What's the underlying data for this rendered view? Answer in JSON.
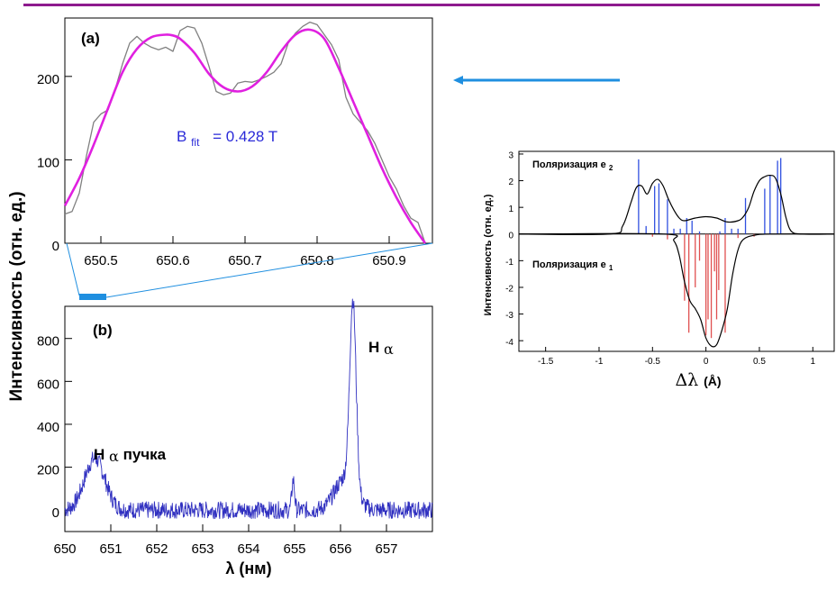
{
  "colors": {
    "top_rule": "#8e1a8e",
    "fit_curve": "#e020e0",
    "data_gray": "#808080",
    "spectrum_blue": "#3030c0",
    "annotation_blue": "#2a2ad8",
    "arrow_blue": "#1f8fe0",
    "sigma_red": "#e05050",
    "pi_blue": "#3050e0"
  },
  "figure": {
    "ylabel_left": "Интенсивность (отн. ед.)",
    "arrow_icon": "left-arrow"
  },
  "chart_data": [
    {
      "type": "line",
      "panel_label": "(a)",
      "annotation": {
        "text_main": "B",
        "text_sub": "fit",
        "text_value": "= 0.428 T"
      },
      "xlim": [
        650.45,
        650.96
      ],
      "ylim": [
        0,
        270
      ],
      "xticks": [
        650.5,
        650.6,
        650.7,
        650.8,
        650.9
      ],
      "xticklabels": [
        "650.5",
        "650.6",
        "650.7",
        "650.8",
        "650.9"
      ],
      "yticks": [
        0,
        100,
        200
      ],
      "yticklabels": [
        "0",
        "100",
        "200"
      ],
      "series": [
        {
          "role": "data",
          "x": [
            650.45,
            650.46,
            650.47,
            650.48,
            650.49,
            650.5,
            650.51,
            650.52,
            650.53,
            650.54,
            650.55,
            650.56,
            650.57,
            650.58,
            650.59,
            650.6,
            650.61,
            650.62,
            650.63,
            650.64,
            650.65,
            650.66,
            650.67,
            650.68,
            650.69,
            650.7,
            650.71,
            650.72,
            650.73,
            650.74,
            650.75,
            650.76,
            650.77,
            650.78,
            650.79,
            650.8,
            650.81,
            650.82,
            650.83,
            650.84,
            650.85,
            650.86,
            650.87,
            650.88,
            650.89,
            650.9,
            650.91,
            650.92,
            650.93,
            650.94,
            650.95
          ],
          "y": [
            35,
            38,
            60,
            105,
            145,
            155,
            160,
            185,
            215,
            240,
            248,
            240,
            235,
            232,
            235,
            230,
            255,
            260,
            258,
            240,
            212,
            182,
            178,
            180,
            192,
            194,
            193,
            196,
            200,
            205,
            215,
            240,
            252,
            260,
            265,
            262,
            250,
            238,
            220,
            175,
            155,
            145,
            135,
            120,
            100,
            80,
            65,
            45,
            30,
            25,
            0
          ]
        },
        {
          "role": "fit",
          "x": [
            650.45,
            650.47,
            650.49,
            650.51,
            650.53,
            650.55,
            650.57,
            650.59,
            650.6,
            650.61,
            650.63,
            650.65,
            650.67,
            650.69,
            650.71,
            650.73,
            650.75,
            650.77,
            650.79,
            650.81,
            650.83,
            650.85,
            650.87,
            650.89,
            650.91,
            650.93,
            650.95
          ],
          "y": [
            45,
            78,
            118,
            162,
            205,
            233,
            247,
            250,
            249,
            245,
            228,
            203,
            187,
            182,
            188,
            205,
            230,
            250,
            256,
            245,
            210,
            170,
            130,
            90,
            55,
            25,
            0
          ]
        }
      ]
    },
    {
      "type": "line",
      "panel_label": "(b)",
      "xlabel": "λ (нм)",
      "xlim": [
        650,
        658
      ],
      "ylim": [
        -100,
        950
      ],
      "xticks": [
        650,
        651,
        652,
        653,
        654,
        655,
        656,
        657
      ],
      "xticklabels": [
        "650",
        "651",
        "652",
        "653",
        "654",
        "655",
        "656",
        "657"
      ],
      "yticks": [
        0,
        200,
        400,
        600,
        800
      ],
      "yticklabels": [
        "0",
        "200",
        "400",
        "600",
        "800"
      ],
      "annotations": [
        {
          "text_main": "H",
          "text_sub": "α",
          "text_tail": " пучка"
        },
        {
          "text_main": "H",
          "text_sub": "α",
          "text_tail": ""
        }
      ],
      "series": [
        {
          "role": "spectrum",
          "baseline": 0,
          "noise": 40,
          "peaks": [
            {
              "center": 650.65,
              "amp": 240,
              "width": 0.22
            },
            {
              "center": 654.97,
              "amp": 140,
              "width": 0.03
            },
            {
              "center": 656.27,
              "amp": 870,
              "width": 0.07
            },
            {
              "center": 656.1,
              "amp": 150,
              "width": 0.22
            }
          ]
        }
      ]
    },
    {
      "type": "line",
      "xlabel_main": "Δλ",
      "xlabel_unit": "(Å)",
      "ylabel": "Интенсивность (отн. ед.)",
      "legend_top": {
        "text_main": "Поляризация e",
        "text_sub": "2"
      },
      "legend_bottom": {
        "text_main": "Поляризация e",
        "text_sub": "1"
      },
      "xlim": [
        -1.75,
        1.2
      ],
      "ylim": [
        -4.4,
        3.1
      ],
      "xticks": [
        -1.5,
        -1,
        -0.5,
        0,
        0.5,
        1
      ],
      "xticklabels": [
        "-1.5",
        "-1",
        "-0.5",
        "0",
        "0.5",
        "1"
      ],
      "yticks": [
        -4,
        -3,
        -2,
        -1,
        0,
        1,
        2,
        3
      ],
      "yticklabels": [
        "-4",
        "-3",
        "-2",
        "-1",
        "0",
        "1",
        "2",
        "3"
      ],
      "series": [
        {
          "role": "envelope-e2",
          "x": [
            -1.75,
            -0.9,
            -0.78,
            -0.7,
            -0.65,
            -0.6,
            -0.55,
            -0.5,
            -0.45,
            -0.4,
            -0.35,
            -0.3,
            -0.25,
            -0.2,
            -0.1,
            0,
            0.1,
            0.2,
            0.3,
            0.35,
            0.4,
            0.45,
            0.5,
            0.55,
            0.6,
            0.65,
            0.7,
            0.75,
            0.8,
            0.9,
            1.2
          ],
          "y": [
            0,
            0,
            0.3,
            1.2,
            1.75,
            1.8,
            1.5,
            1.9,
            2.05,
            1.8,
            1.3,
            0.9,
            0.6,
            0.5,
            0.6,
            0.65,
            0.6,
            0.45,
            0.5,
            0.65,
            1.0,
            1.6,
            2.0,
            2.15,
            2.2,
            2.1,
            1.5,
            0.6,
            0.1,
            0,
            0
          ]
        },
        {
          "role": "envelope-e1",
          "x": [
            -1.75,
            -0.4,
            -0.3,
            -0.25,
            -0.2,
            -0.15,
            -0.1,
            -0.05,
            0,
            0.05,
            0.1,
            0.15,
            0.2,
            0.25,
            0.3,
            0.35,
            0.45,
            0.6,
            1.2
          ],
          "y": [
            0,
            0,
            -0.25,
            -0.8,
            -1.8,
            -2.5,
            -2.8,
            -3.2,
            -3.9,
            -4.2,
            -4.15,
            -3.6,
            -2.8,
            -1.5,
            -0.6,
            -0.2,
            -0.05,
            0,
            0
          ]
        },
        {
          "role": "components-e2",
          "x": [
            -0.63,
            -0.56,
            -0.48,
            -0.44,
            -0.36,
            -0.3,
            -0.24,
            -0.18,
            -0.13,
            -0.06,
            0.13,
            0.18,
            0.24,
            0.3,
            0.37,
            0.55,
            0.6,
            0.67,
            0.7
          ],
          "y": [
            2.8,
            0.3,
            1.8,
            1.9,
            1.3,
            0.2,
            0.2,
            0.6,
            0.5,
            0.1,
            0.1,
            0.6,
            0.2,
            0.2,
            1.35,
            1.7,
            2.2,
            2.75,
            2.85
          ]
        },
        {
          "role": "components-e1",
          "x": [
            -0.2,
            -0.16,
            -0.1,
            -0.06,
            0,
            0.02,
            0.05,
            0.08,
            0.1,
            0.12,
            0.18,
            -0.36,
            0.3,
            -0.5,
            0.45
          ],
          "y": [
            -2.5,
            -3.7,
            -2.0,
            -1.0,
            -3.8,
            -3.2,
            -3.9,
            -1.4,
            -3.2,
            -2.1,
            -3.7,
            -0.2,
            -0.15,
            -0.1,
            -0.1
          ]
        }
      ]
    }
  ]
}
